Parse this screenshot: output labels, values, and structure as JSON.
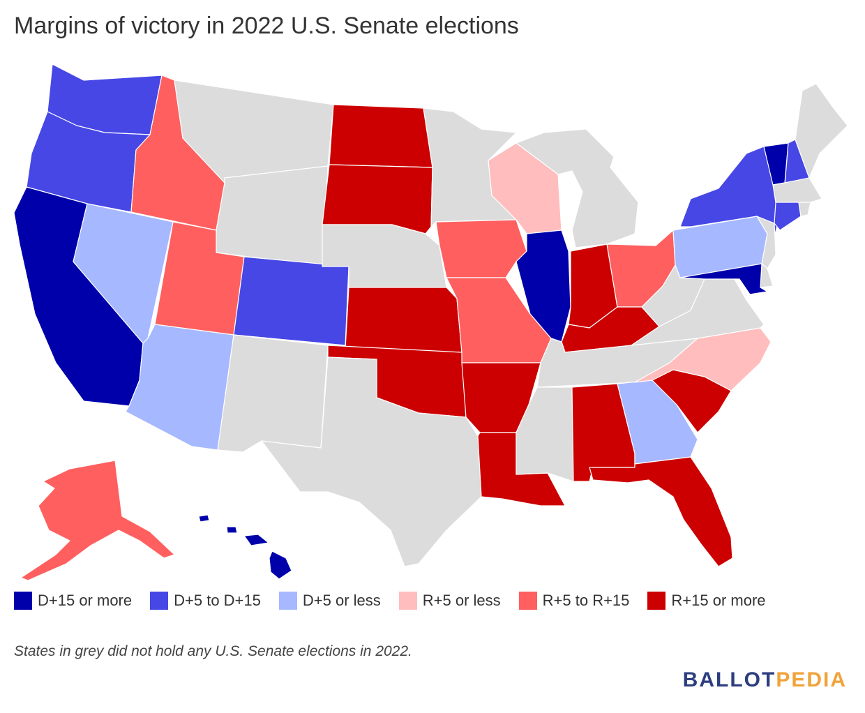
{
  "title": "Margins of victory in 2022 U.S. Senate elections",
  "note": "States in grey did not hold any U.S. Senate elections in 2022.",
  "logo": {
    "part1": "BALLOT",
    "part2": "PEDIA"
  },
  "colors": {
    "d_high": "#0000aa",
    "d_mid": "#4747e6",
    "d_low": "#a6b8ff",
    "r_low": "#ffbdbd",
    "r_mid": "#ff5f5f",
    "r_high": "#cc0000",
    "none": "#dcdcdc"
  },
  "legend": [
    {
      "label": "D+15 or more",
      "color": "#0000aa"
    },
    {
      "label": "D+5 to D+15",
      "color": "#4747e6"
    },
    {
      "label": "D+5 or less",
      "color": "#a6b8ff"
    },
    {
      "label": "R+5 or less",
      "color": "#ffbdbd"
    },
    {
      "label": "R+5 to R+15",
      "color": "#ff5f5f"
    },
    {
      "label": "R+15 or more",
      "color": "#cc0000"
    }
  ],
  "states": {
    "WA": "d_mid",
    "OR": "d_mid",
    "CA": "d_high",
    "NV": "d_low",
    "ID": "r_mid",
    "MT": "none",
    "WY": "none",
    "UT": "r_mid",
    "AZ": "d_low",
    "CO": "d_mid",
    "NM": "none",
    "ND": "r_high",
    "SD": "r_high",
    "NE": "none",
    "KS": "r_high",
    "OK": "r_high",
    "TX": "none",
    "MN": "none",
    "IA": "r_mid",
    "MO": "r_mid",
    "AR": "r_high",
    "LA": "r_high",
    "WI": "r_low",
    "IL": "d_high",
    "MI": "none",
    "IN": "r_high",
    "OH": "r_mid",
    "KY": "r_high",
    "TN": "none",
    "MS": "none",
    "AL": "r_high",
    "GA": "d_low",
    "FL": "r_high",
    "SC": "r_high",
    "NC": "r_low",
    "VA": "none",
    "WV": "none",
    "PA": "d_low",
    "NY": "d_mid",
    "VT": "d_high",
    "NH": "d_mid",
    "ME": "none",
    "MA": "none",
    "CT": "d_mid",
    "RI": "none",
    "NJ": "none",
    "DE": "none",
    "MD": "d_high",
    "AK": "r_mid",
    "HI": "d_high"
  }
}
